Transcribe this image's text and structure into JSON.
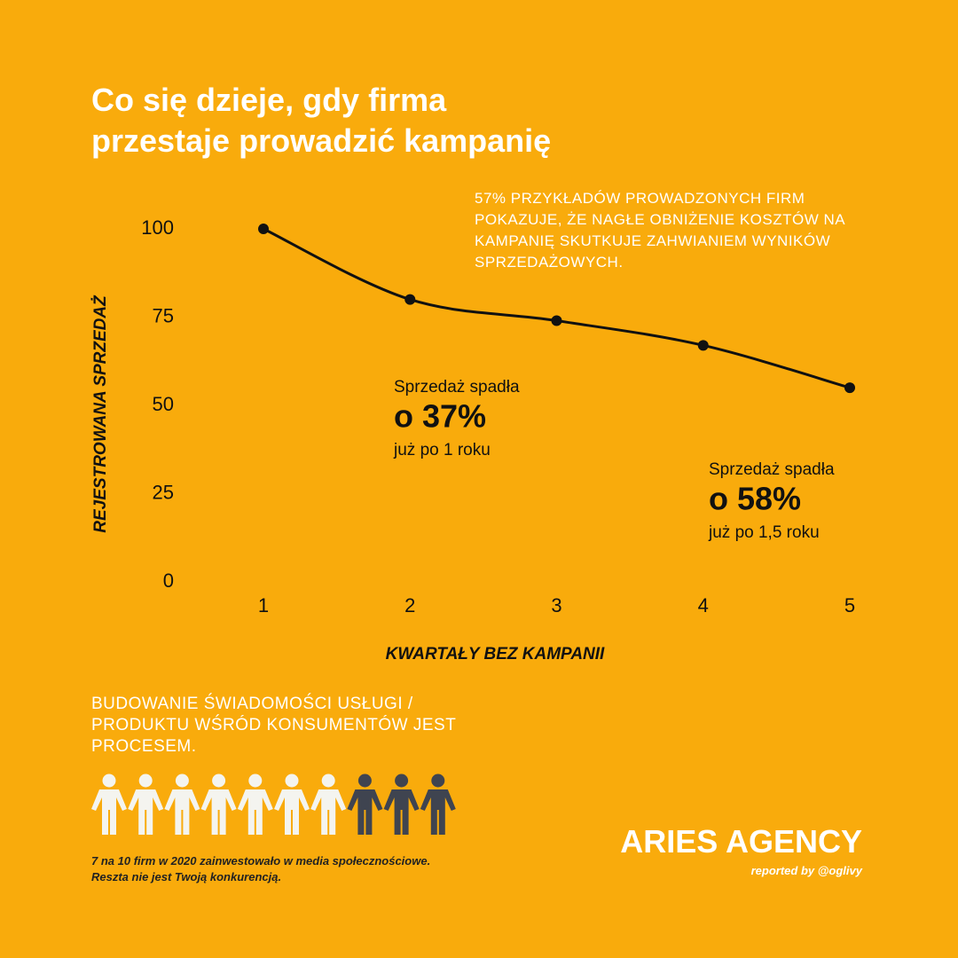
{
  "chart_data": {
    "type": "line",
    "title": "Co się dzieje, gdy firma przestaje prowadzić kampanię",
    "note": "57% PRZYKŁADÓW PROWADZONYCH FIRM POKAZUJE, ŻE NAGŁE OBNIŻENIE KOSZTÓW NA KAMPANIĘ SKUTKUJE ZAHWIANIEM WYNIKÓW SPRZEDAŻOWYCH.",
    "x_label": "KWARTAŁY BEZ KAMPANII",
    "y_label": "REJESTROWANA SPRZEDAŻ",
    "x": [
      1,
      2,
      3,
      4,
      5
    ],
    "xlim": [
      1,
      5
    ],
    "xticks": [
      1,
      2,
      3,
      4,
      5
    ],
    "ylim": [
      0,
      100
    ],
    "yticks": [
      0,
      25,
      50,
      75,
      100
    ],
    "series": [
      {
        "name": "Sprzedaż",
        "color": "#111111",
        "values": [
          100,
          80,
          74,
          67,
          55
        ]
      }
    ],
    "annotations": [
      {
        "text": "Sprzedaż spadła",
        "headline": "o 37%",
        "note": "już po 1 roku"
      },
      {
        "text": "Sprzedaż spadła",
        "headline": "o 58%",
        "note": "już po 1,5 roku"
      }
    ],
    "grid": false
  },
  "infographic": {
    "statement": "BUDOWANIE ŚWIADOMOŚCI USŁUGI / PRODUKTU WŚRÓD KONSUMENTÓW JEST PROCESEM.",
    "people": {
      "highlighted": 7,
      "total": 10
    },
    "caption": "7 na 10 firm w 2020 zainwestowało w media społecznościowe. Reszta nie jest Twoją konkurencją.",
    "brand": "ARIES AGENCY",
    "credit": "reported by @oglivy"
  }
}
